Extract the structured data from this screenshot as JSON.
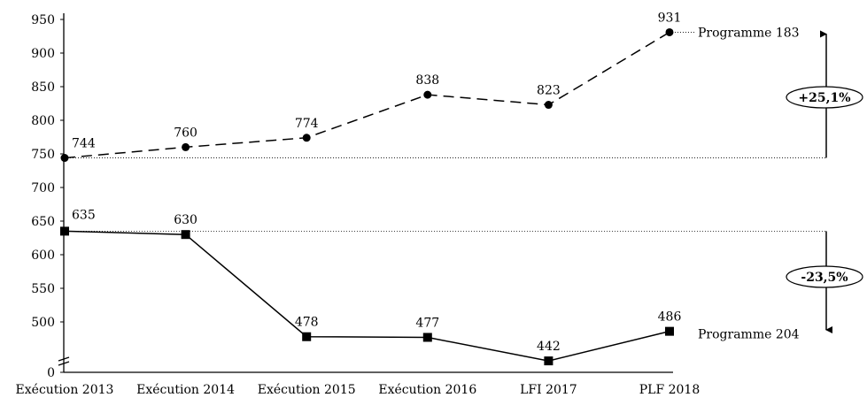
{
  "chart_data": {
    "type": "line",
    "title": "",
    "xlabel": "",
    "ylabel": "",
    "categories": [
      "Exécution 2013",
      "Exécution 2014",
      "Exécution 2015",
      "Exécution 2016",
      "LFI 2017",
      "PLF 2018"
    ],
    "y_ticks": [
      0,
      500,
      550,
      600,
      650,
      700,
      750,
      800,
      850,
      900,
      950
    ],
    "ylim": [
      440,
      950
    ],
    "axis_break": true,
    "grid": false,
    "series": [
      {
        "name": "Programme 183",
        "style": "dashed",
        "marker": "circle",
        "values": [
          744,
          760,
          774,
          838,
          823,
          931
        ]
      },
      {
        "name": "Programme 204",
        "style": "solid",
        "marker": "square",
        "values": [
          635,
          630,
          478,
          477,
          442,
          486
        ]
      }
    ],
    "annotations": [
      {
        "text": "+25,1%",
        "series": "Programme 183"
      },
      {
        "text": "-23,5%",
        "series": "Programme 204"
      }
    ]
  }
}
